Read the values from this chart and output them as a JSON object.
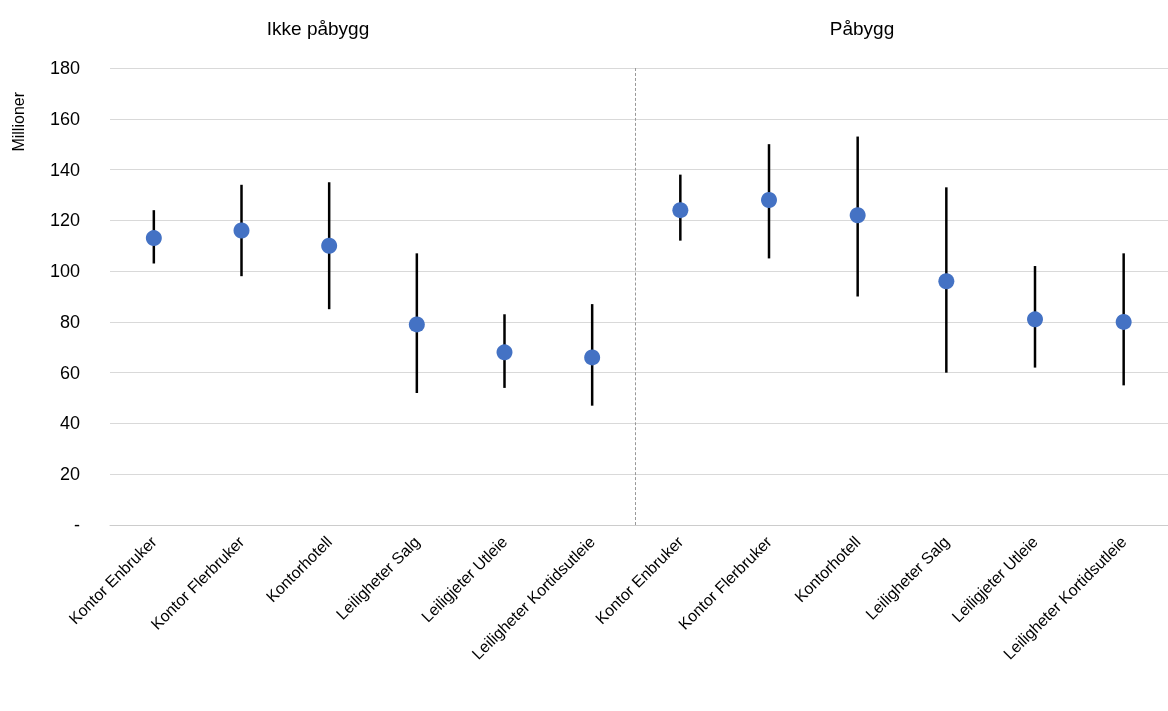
{
  "chart_data": [
    {
      "type": "scatter",
      "title": "Ikke påbygg",
      "ylabel": "Millioner",
      "categories": [
        "Kontor Enbruker",
        "Kontor Flerbruker",
        "Kontorhotell",
        "Leiligheter Salg",
        "Leiligjeter Utleie",
        "Leiligheter Kortidsutleie"
      ],
      "series": [
        {
          "color": "#4472c4",
          "values": [
            113,
            116,
            110,
            79,
            68,
            66
          ],
          "errors": [
            [
              103,
              124
            ],
            [
              98,
              134
            ],
            [
              85,
              135
            ],
            [
              52,
              107
            ],
            [
              54,
              83
            ],
            [
              47,
              87
            ]
          ]
        }
      ],
      "ylim": [
        0,
        180
      ],
      "yticks": [
        {
          "value": 0,
          "label": "-"
        },
        20,
        40,
        60,
        80,
        100,
        120,
        140,
        160,
        180
      ],
      "grid": "y",
      "marker": "circle"
    },
    {
      "type": "scatter",
      "title": "Påbygg",
      "categories": [
        "Kontor Enbruker",
        "Kontor Flerbruker",
        "Kontorhotell",
        "Leiligheter Salg",
        "Leiligjeter Utleie",
        "Leiligheter Kortidsutleie"
      ],
      "series": [
        {
          "color": "#4472c4",
          "values": [
            124,
            128,
            122,
            96,
            81,
            80
          ],
          "errors": [
            [
              112,
              138
            ],
            [
              105,
              150
            ],
            [
              90,
              153
            ],
            [
              60,
              133
            ],
            [
              62,
              102
            ],
            [
              55,
              107
            ]
          ]
        }
      ],
      "ylim": [
        0,
        180
      ],
      "yticks": [
        0,
        20,
        40,
        60,
        80,
        100,
        120,
        140,
        160,
        180
      ],
      "grid": "y",
      "marker": "circle",
      "tick_labels": "x"
    }
  ]
}
